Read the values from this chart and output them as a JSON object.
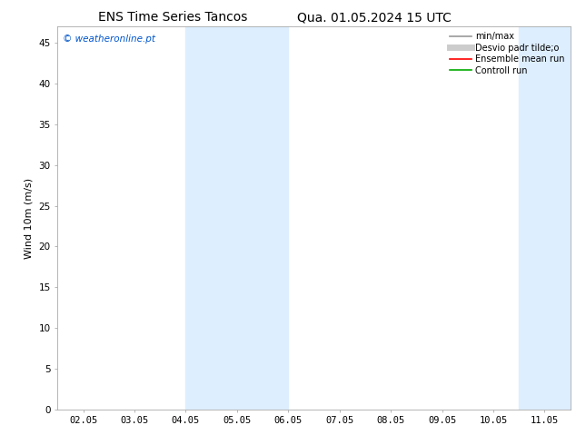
{
  "title_left": "ENS Time Series Tancos",
  "title_right": "Qua. 01.05.2024 15 UTC",
  "ylabel": "Wind 10m (m/s)",
  "watermark": "© weatheronline.pt",
  "ylim": [
    0,
    47
  ],
  "yticks": [
    0,
    5,
    10,
    15,
    20,
    25,
    30,
    35,
    40,
    45
  ],
  "xtick_labels": [
    "02.05",
    "03.05",
    "04.05",
    "05.05",
    "06.05",
    "07.05",
    "08.05",
    "09.05",
    "10.05",
    "11.05"
  ],
  "xtick_positions": [
    0,
    1,
    2,
    3,
    4,
    5,
    6,
    7,
    8,
    9
  ],
  "xlim": [
    -0.5,
    9.5
  ],
  "shaded_bands": [
    {
      "xmin": 2.0,
      "xmax": 4.0
    },
    {
      "xmin": 8.5,
      "xmax": 9.5
    }
  ],
  "shaded_color": "#ddeeff",
  "background_color": "#ffffff",
  "plot_bg_color": "#ffffff",
  "title_fontsize": 10,
  "axis_label_fontsize": 8,
  "tick_fontsize": 7.5,
  "watermark_color": "#0055cc",
  "legend_entries": [
    {
      "label": "min/max",
      "color": "#999999",
      "lw": 1.2,
      "style": "-"
    },
    {
      "label": "Desvio padr tilde;o",
      "color": "#cccccc",
      "lw": 5,
      "style": "-"
    },
    {
      "label": "Ensemble mean run",
      "color": "#ff0000",
      "lw": 1.2,
      "style": "-"
    },
    {
      "label": "Controll run",
      "color": "#00aa00",
      "lw": 1.2,
      "style": "-"
    }
  ]
}
